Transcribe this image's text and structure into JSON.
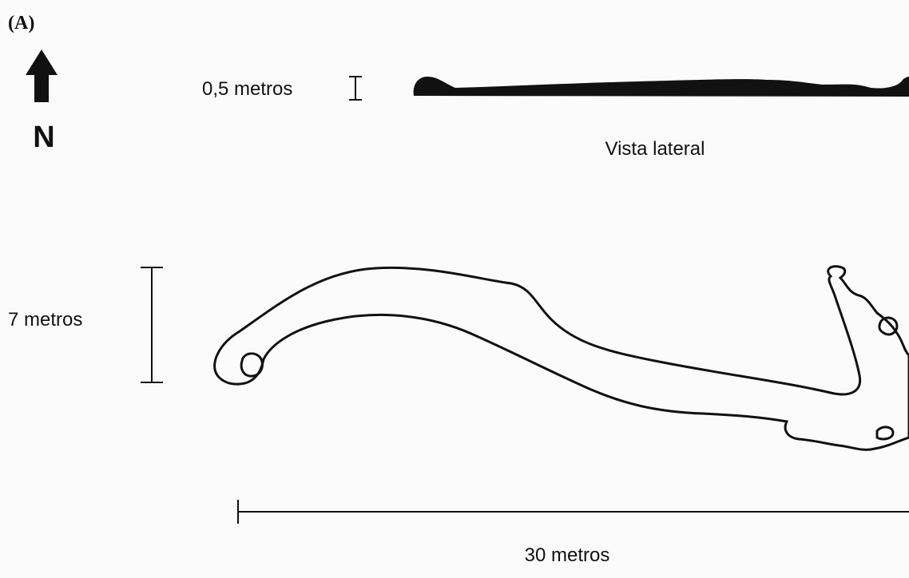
{
  "panel_label": "(A)",
  "north_label": "N",
  "lateral_scale_label": "0,5 metros",
  "lateral_view_label": "Vista lateral",
  "vertical_scale_label": "7 metros",
  "horizontal_scale_label": "30 metros"
}
